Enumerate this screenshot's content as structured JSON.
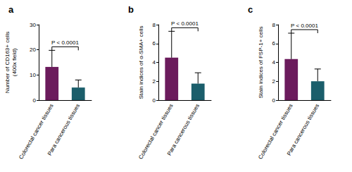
{
  "chart_data": [
    {
      "type": "bar",
      "title": "a",
      "y_label": "Number of CD163+ cells\n(400x field)",
      "categories": [
        "Colorectal cancer tissues",
        "Para cancerous tissues"
      ],
      "values": [
        13.2,
        5.0
      ],
      "errors": [
        6.6,
        3.0
      ],
      "colors": [
        "#6b1b5c",
        "#1b5e6b"
      ],
      "ylim": [
        0,
        30
      ],
      "yticks": [
        0,
        10,
        20,
        30
      ],
      "grid": false,
      "annotation": "P < 0.0001"
    },
    {
      "type": "bar",
      "title": "b",
      "y_label": "Stain indices of α-SMA+ cells",
      "categories": [
        "Colorectal cancer tissues",
        "Para cancerous tissues"
      ],
      "values": [
        4.5,
        1.75
      ],
      "errors": [
        2.8,
        1.15
      ],
      "colors": [
        "#6b1b5c",
        "#1b5e6b"
      ],
      "ylim": [
        0,
        8
      ],
      "yticks": [
        0,
        2,
        4,
        6,
        8
      ],
      "grid": false,
      "annotation": "P < 0.0001"
    },
    {
      "type": "bar",
      "title": "c",
      "y_label": "Stain indices of FSP-1+ cells",
      "categories": [
        "Colorectal cancer tissues",
        "Para cancerous tissues"
      ],
      "values": [
        4.35,
        2.0
      ],
      "errors": [
        2.75,
        1.3
      ],
      "colors": [
        "#6b1b5c",
        "#1b5e6b"
      ],
      "ylim": [
        0,
        8
      ],
      "yticks": [
        0,
        2,
        4,
        6,
        8
      ],
      "grid": false,
      "annotation": "P < 0.0001"
    }
  ]
}
